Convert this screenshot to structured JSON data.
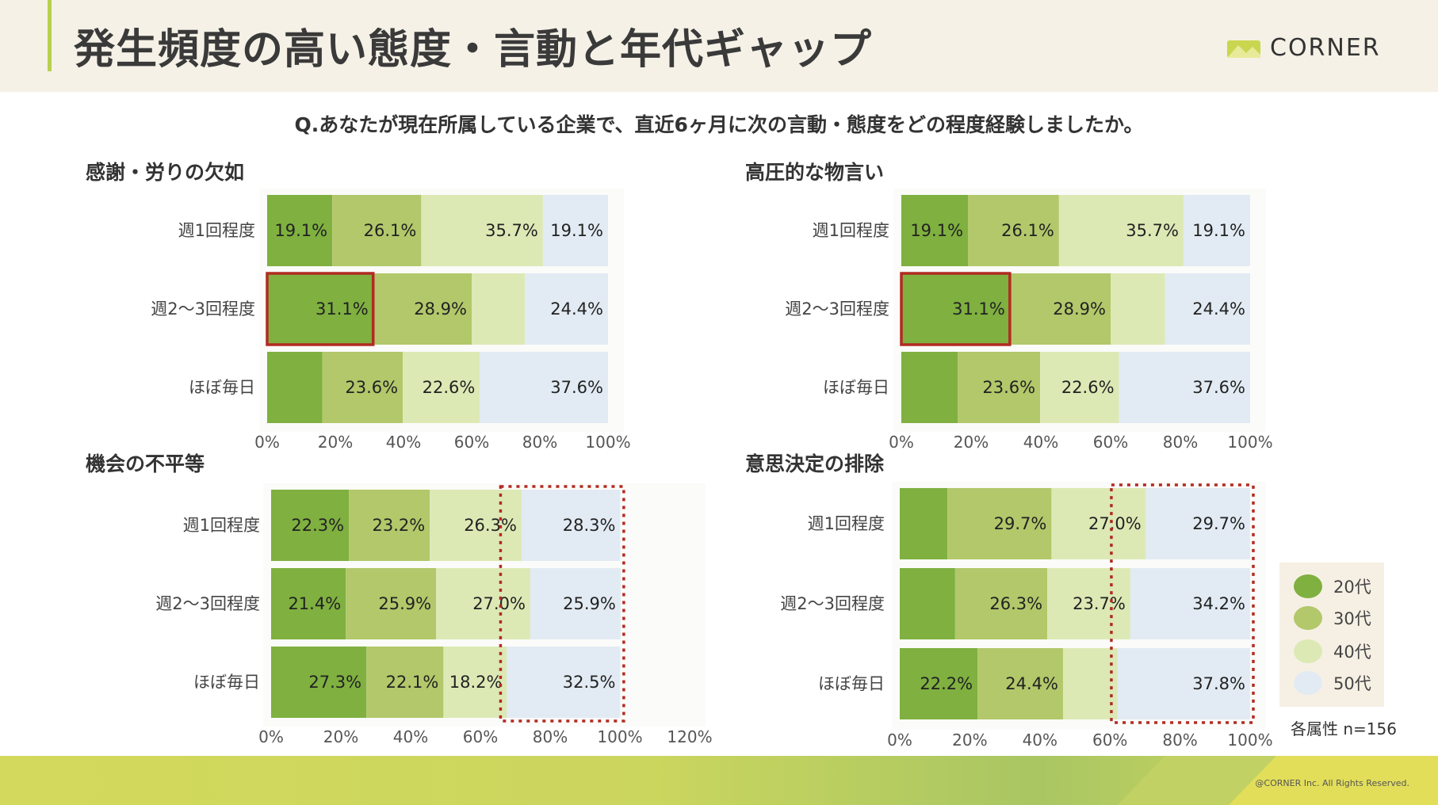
{
  "page": {
    "title": "発生頻度の高い態度・言動と年代ギャップ",
    "question": "Q.あなたが現在所属している企業で、直近6ヶ月に次の言動・態度をどの程度経験しましたか。",
    "logo_text": "CORNER",
    "sample_size": "各属性 n=156",
    "copyright": "@CORNER Inc. All Rights Reserved."
  },
  "legend": {
    "items": [
      {
        "label": "20代",
        "color": "#7fb040"
      },
      {
        "label": "30代",
        "color": "#b2c86a"
      },
      {
        "label": "40代",
        "color": "#dce9b5"
      },
      {
        "label": "50代",
        "color": "#e2ebf3"
      }
    ]
  },
  "colors": {
    "age20": "#7fb040",
    "age30": "#b2c86a",
    "age40": "#dce9b5",
    "age50": "#e2ebf3",
    "highlight_solid": "#b22a22",
    "highlight_dotted": "#b22a22"
  },
  "chart_data": [
    {
      "type": "bar",
      "orientation": "horizontal-stacked",
      "title": "感謝・労りの欠如",
      "categories": [
        "週1回程度",
        "週2〜3回程度",
        "ほぼ毎日"
      ],
      "series": [
        {
          "name": "20代",
          "values": [
            19.1,
            31.1,
            16.2
          ],
          "labels": [
            "19.1%",
            "31.1%",
            ""
          ]
        },
        {
          "name": "30代",
          "values": [
            26.1,
            28.9,
            23.6
          ],
          "labels": [
            "26.1%",
            "28.9%",
            "23.6%"
          ]
        },
        {
          "name": "40代",
          "values": [
            35.7,
            15.6,
            22.6
          ],
          "labels": [
            "35.7%",
            "",
            "22.6%"
          ]
        },
        {
          "name": "50代",
          "values": [
            19.1,
            24.4,
            37.6
          ],
          "labels": [
            "19.1%",
            "24.4%",
            "37.6%"
          ]
        }
      ],
      "x_ticks": [
        "0%",
        "20%",
        "40%",
        "60%",
        "80%",
        "100%"
      ],
      "xlim": [
        0,
        100
      ],
      "highlight": {
        "style": "solid",
        "category": "週2〜3回程度",
        "series": "20代"
      }
    },
    {
      "type": "bar",
      "orientation": "horizontal-stacked",
      "title": "高圧的な物言い",
      "categories": [
        "週1回程度",
        "週2〜3回程度",
        "ほぼ毎日"
      ],
      "series": [
        {
          "name": "20代",
          "values": [
            19.1,
            31.1,
            16.2
          ],
          "labels": [
            "19.1%",
            "31.1%",
            ""
          ]
        },
        {
          "name": "30代",
          "values": [
            26.1,
            28.9,
            23.6
          ],
          "labels": [
            "26.1%",
            "28.9%",
            "23.6%"
          ]
        },
        {
          "name": "40代",
          "values": [
            35.7,
            15.6,
            22.6
          ],
          "labels": [
            "35.7%",
            "",
            "22.6%"
          ]
        },
        {
          "name": "50代",
          "values": [
            19.1,
            24.4,
            37.6
          ],
          "labels": [
            "19.1%",
            "24.4%",
            "37.6%"
          ]
        }
      ],
      "x_ticks": [
        "0%",
        "20%",
        "40%",
        "60%",
        "80%",
        "100%"
      ],
      "xlim": [
        0,
        100
      ],
      "highlight": {
        "style": "solid",
        "category": "週2〜3回程度",
        "series": "20代"
      }
    },
    {
      "type": "bar",
      "orientation": "horizontal-stacked",
      "title": "機会の不平等",
      "categories": [
        "週1回程度",
        "週2〜3回程度",
        "ほぼ毎日"
      ],
      "series": [
        {
          "name": "20代",
          "values": [
            22.3,
            21.4,
            27.3
          ],
          "labels": [
            "22.3%",
            "21.4%",
            "27.3%"
          ]
        },
        {
          "name": "30代",
          "values": [
            23.2,
            25.9,
            22.1
          ],
          "labels": [
            "23.2%",
            "25.9%",
            "22.1%"
          ]
        },
        {
          "name": "40代",
          "values": [
            26.3,
            27.0,
            18.2
          ],
          "labels": [
            "26.3%",
            "27.0%",
            "18.2%"
          ]
        },
        {
          "name": "50代",
          "values": [
            28.3,
            25.9,
            32.5
          ],
          "labels": [
            "28.3%",
            "25.9%",
            "32.5%"
          ]
        }
      ],
      "x_ticks": [
        "0%",
        "20%",
        "40%",
        "60%",
        "80%",
        "100%",
        "120%"
      ],
      "xlim": [
        0,
        120
      ],
      "highlight": {
        "style": "dotted",
        "series": "50代"
      }
    },
    {
      "type": "bar",
      "orientation": "horizontal-stacked",
      "title": "意思決定の排除",
      "categories": [
        "週1回程度",
        "週2〜3回程度",
        "ほぼ毎日"
      ],
      "series": [
        {
          "name": "20代",
          "values": [
            13.6,
            15.8,
            22.2
          ],
          "labels": [
            "",
            "",
            "22.2%"
          ]
        },
        {
          "name": "30代",
          "values": [
            29.7,
            26.3,
            24.4
          ],
          "labels": [
            "29.7%",
            "26.3%",
            "24.4%"
          ]
        },
        {
          "name": "40代",
          "values": [
            27.0,
            23.7,
            15.6
          ],
          "labels": [
            "27.0%",
            "23.7%",
            ""
          ]
        },
        {
          "name": "50代",
          "values": [
            29.7,
            34.2,
            37.8
          ],
          "labels": [
            "29.7%",
            "34.2%",
            "37.8%"
          ]
        }
      ],
      "x_ticks": [
        "0%",
        "20%",
        "40%",
        "60%",
        "80%",
        "100%"
      ],
      "xlim": [
        0,
        100
      ],
      "highlight": {
        "style": "dotted",
        "series": "50代"
      }
    }
  ]
}
